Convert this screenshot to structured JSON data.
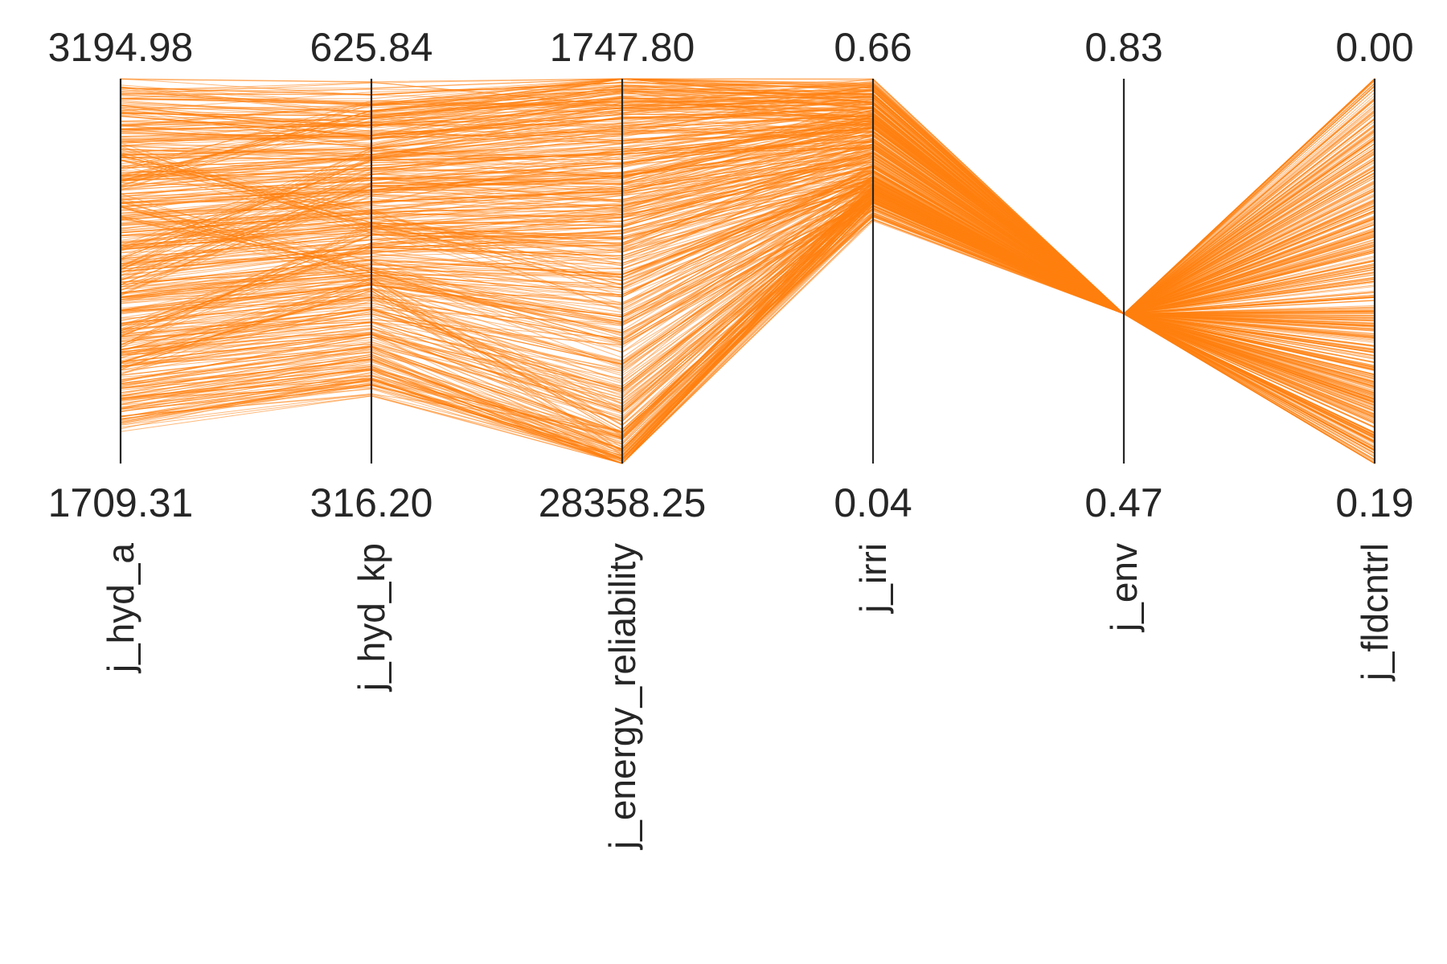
{
  "chart_data": {
    "type": "parallel-coordinates",
    "title": "",
    "line_color": "#ff7f0e",
    "orientation": "axis top = first listed value, axis bottom = second listed value",
    "axes": [
      {
        "name": "j_hyd_a",
        "top": "3194.98",
        "bottom": "1709.31",
        "top_value": 3194.98,
        "bottom_value": 1709.31
      },
      {
        "name": "j_hyd_kp",
        "top": "625.84",
        "bottom": "316.20",
        "top_value": 625.84,
        "bottom_value": 316.2
      },
      {
        "name": "j_energy_reliability",
        "top": "1747.80",
        "bottom": "28358.25",
        "top_value": 1747.8,
        "bottom_value": 28358.25
      },
      {
        "name": "j_irri",
        "top": "0.66",
        "bottom": "0.04",
        "top_value": 0.66,
        "bottom_value": 0.04
      },
      {
        "name": "j_env",
        "top": "0.83",
        "bottom": "0.47",
        "top_value": 0.83,
        "bottom_value": 0.47
      },
      {
        "name": "j_fldcntrl",
        "top": "0.00",
        "bottom": "0.19",
        "top_value": 0.0,
        "bottom_value": 0.19
      }
    ],
    "series_profiles": [
      {
        "values": [
          3160,
          613,
          2010,
          0.645,
          0.61,
          0.0
        ]
      },
      {
        "values": [
          3120,
          605,
          2500,
          0.64,
          0.61,
          0.01
        ]
      },
      {
        "values": [
          3060,
          596,
          3100,
          0.63,
          0.61,
          0.02
        ]
      },
      {
        "values": [
          3000,
          588,
          3800,
          0.62,
          0.61,
          0.032
        ]
      },
      {
        "values": [
          2950,
          580,
          4500,
          0.612,
          0.61,
          0.045
        ]
      },
      {
        "values": [
          2900,
          570,
          5200,
          0.602,
          0.61,
          0.055
        ]
      },
      {
        "values": [
          2850,
          562,
          6000,
          0.592,
          0.61,
          0.065
        ]
      },
      {
        "values": [
          2800,
          554,
          6800,
          0.582,
          0.61,
          0.075
        ]
      },
      {
        "values": [
          2750,
          544,
          7600,
          0.57,
          0.61,
          0.085
        ]
      },
      {
        "values": [
          2700,
          536,
          8500,
          0.56,
          0.61,
          0.093
        ]
      },
      {
        "values": [
          2650,
          527,
          9500,
          0.55,
          0.61,
          0.1
        ]
      },
      {
        "values": [
          2600,
          518,
          10500,
          0.54,
          0.61,
          0.108
        ]
      },
      {
        "values": [
          2550,
          509,
          11600,
          0.53,
          0.61,
          0.115
        ]
      },
      {
        "values": [
          2500,
          500,
          12800,
          0.52,
          0.61,
          0.122
        ]
      },
      {
        "values": [
          2450,
          490,
          14000,
          0.51,
          0.61,
          0.128
        ]
      },
      {
        "values": [
          2400,
          480,
          15300,
          0.5,
          0.61,
          0.135
        ]
      },
      {
        "values": [
          2350,
          470,
          16700,
          0.495,
          0.61,
          0.14
        ]
      },
      {
        "values": [
          2300,
          460,
          18200,
          0.49,
          0.61,
          0.146
        ]
      },
      {
        "values": [
          2250,
          450,
          19800,
          0.485,
          0.61,
          0.152
        ]
      },
      {
        "values": [
          2200,
          440,
          21500,
          0.48,
          0.61,
          0.158
        ]
      },
      {
        "values": [
          2150,
          430,
          23200,
          0.478,
          0.61,
          0.164
        ]
      },
      {
        "values": [
          2100,
          420,
          24800,
          0.475,
          0.61,
          0.17
        ]
      },
      {
        "values": [
          2050,
          410,
          26200,
          0.47,
          0.61,
          0.176
        ]
      },
      {
        "values": [
          2000,
          400,
          27400,
          0.465,
          0.61,
          0.182
        ]
      },
      {
        "values": [
          1960,
          392,
          28000,
          0.46,
          0.61,
          0.185
        ]
      },
      {
        "values": [
          1920,
          385,
          28200,
          0.455,
          0.61,
          0.188
        ]
      },
      {
        "values": [
          3050,
          580,
          4200,
          0.6,
          0.61,
          0.09
        ]
      },
      {
        "values": [
          2800,
          600,
          2600,
          0.635,
          0.61,
          0.03
        ]
      },
      {
        "values": [
          2500,
          560,
          7000,
          0.58,
          0.61,
          0.16
        ]
      },
      {
        "values": [
          2200,
          500,
          12000,
          0.54,
          0.61,
          0.06
        ]
      },
      {
        "values": [
          2700,
          470,
          20000,
          0.47,
          0.61,
          0.118
        ]
      },
      {
        "values": [
          2400,
          540,
          9000,
          0.6,
          0.61,
          0.072
        ]
      },
      {
        "values": [
          2100,
          455,
          26000,
          0.462,
          0.61,
          0.175
        ]
      },
      {
        "values": [
          2900,
          510,
          16000,
          0.51,
          0.61,
          0.04
        ]
      },
      {
        "values": [
          1880,
          380,
          27800,
          0.46,
          0.61,
          0.15
        ]
      }
    ]
  }
}
